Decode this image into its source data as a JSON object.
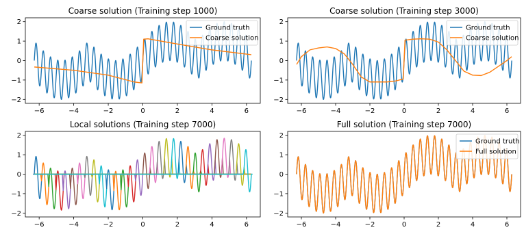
{
  "figure_colors": {
    "ground_truth": "#1f77b4",
    "orange": "#ff7f0e",
    "local_palette": [
      "#1f77b4",
      "#ff7f0e",
      "#2ca02c",
      "#d62728",
      "#9467bd",
      "#8c564b",
      "#e377c2",
      "#7f7f7f",
      "#bcbd22",
      "#17becf"
    ]
  },
  "chart_data": [
    {
      "id": "p1",
      "type": "line",
      "title": "Coarse solution (Training step 1000)",
      "xlim": [
        -6.8,
        6.8
      ],
      "ylim": [
        -2.2,
        2.2
      ],
      "xticks": [
        -6,
        -4,
        -2,
        0,
        2,
        4,
        6
      ],
      "xtick_labels": [
        "−6",
        "−4",
        "−2",
        "0",
        "2",
        "4",
        "6"
      ],
      "yticks": [
        -2,
        -1,
        0,
        1,
        2
      ],
      "ytick_labels": [
        "−2",
        "−1",
        "0",
        "1",
        "2"
      ],
      "legend": {
        "placement": "top-right",
        "entries": [
          "Ground truth",
          "Coarse solution"
        ]
      },
      "series": [
        {
          "name": "Ground truth",
          "kind": "ground_truth",
          "x_range": [
            -6.2832,
            6.2832
          ],
          "formula": "tanh(50x)*|sin(x)| + sin(15x)"
        },
        {
          "name": "Coarse solution",
          "kind": "piecewise_linear",
          "x": [
            -6.28,
            -4,
            -2,
            -0.5,
            -0.05,
            0.05,
            0.3,
            2,
            4,
            6.28
          ],
          "y": [
            -0.33,
            -0.5,
            -0.75,
            -1.1,
            -1.15,
            1.1,
            1.12,
            0.85,
            0.55,
            0.3
          ]
        }
      ]
    },
    {
      "id": "p2",
      "type": "line",
      "title": "Coarse solution (Training step 3000)",
      "xlim": [
        -6.8,
        6.8
      ],
      "ylim": [
        -2.2,
        2.2
      ],
      "xticks": [
        -6,
        -4,
        -2,
        0,
        2,
        4,
        6
      ],
      "xtick_labels": [
        "−6",
        "−4",
        "−2",
        "0",
        "2",
        "4",
        "6"
      ],
      "yticks": [
        -2,
        -1,
        0,
        1,
        2
      ],
      "ytick_labels": [
        "−2",
        "−1",
        "0",
        "1",
        "2"
      ],
      "legend": {
        "placement": "top-right",
        "entries": [
          "Ground truth",
          "Coarse solution"
        ]
      },
      "series": [
        {
          "name": "Ground truth",
          "kind": "ground_truth",
          "x_range": [
            -6.2832,
            6.2832
          ],
          "formula": "tanh(50x)*|sin(x)| + sin(15x)"
        },
        {
          "name": "Coarse solution",
          "kind": "piecewise_linear",
          "x": [
            -6.28,
            -6,
            -5.5,
            -5,
            -4.5,
            -4,
            -3.5,
            -3,
            -2.5,
            -2,
            -1.5,
            -1,
            -0.5,
            -0.05,
            0.05,
            0.5,
            1,
            1.5,
            2,
            2.5,
            3,
            3.5,
            4,
            4.5,
            5,
            5.5,
            6,
            6.28
          ],
          "y": [
            -0.2,
            0.2,
            0.55,
            0.65,
            0.7,
            0.62,
            0.35,
            -0.2,
            -0.85,
            -1.1,
            -1.1,
            -1.1,
            -1.05,
            -0.95,
            1.05,
            1.1,
            1.12,
            1.1,
            0.95,
            0.55,
            0.0,
            -0.55,
            -0.75,
            -0.77,
            -0.6,
            -0.3,
            0.0,
            0.2
          ]
        }
      ]
    },
    {
      "id": "p3",
      "type": "line",
      "title": "Local solutions (Training step 7000)",
      "xlim": [
        -6.8,
        6.8
      ],
      "ylim": [
        -2.2,
        2.2
      ],
      "xticks": [
        -6,
        -4,
        -2,
        0,
        2,
        4,
        6
      ],
      "xtick_labels": [
        "−6",
        "−4",
        "−2",
        "0",
        "2",
        "4",
        "6"
      ],
      "yticks": [
        -2,
        -1,
        0,
        1,
        2
      ],
      "ytick_labels": [
        "−2",
        "−1",
        "0",
        "1",
        "2"
      ],
      "legend": null,
      "series": [
        {
          "kind": "local_windows",
          "windows": 30,
          "x_range": [
            -6.2832,
            6.2832
          ],
          "formula": "window_i(x) * sin(15x)"
        }
      ]
    },
    {
      "id": "p4",
      "type": "line",
      "title": "Full solution (Training step 7000)",
      "xlim": [
        -6.8,
        6.8
      ],
      "ylim": [
        -2.2,
        2.2
      ],
      "xticks": [
        -6,
        -4,
        -2,
        0,
        2,
        4,
        6
      ],
      "xtick_labels": [
        "−6",
        "−4",
        "−2",
        "0",
        "2",
        "4",
        "6"
      ],
      "yticks": [
        -2,
        -1,
        0,
        1,
        2
      ],
      "ytick_labels": [
        "−2",
        "−1",
        "0",
        "1",
        "2"
      ],
      "legend": {
        "placement": "top-right",
        "entries": [
          "Ground truth",
          "Full solution"
        ]
      },
      "series": [
        {
          "name": "Ground truth",
          "kind": "ground_truth",
          "x_range": [
            -6.2832,
            6.2832
          ],
          "formula": "tanh(50x)*|sin(x)| + sin(15x)"
        },
        {
          "name": "Full solution",
          "kind": "ground_truth_overlay",
          "x_range": [
            -6.2832,
            6.2832
          ],
          "formula": "tanh(50x)*|sin(x)| + sin(15x)"
        }
      ]
    }
  ]
}
